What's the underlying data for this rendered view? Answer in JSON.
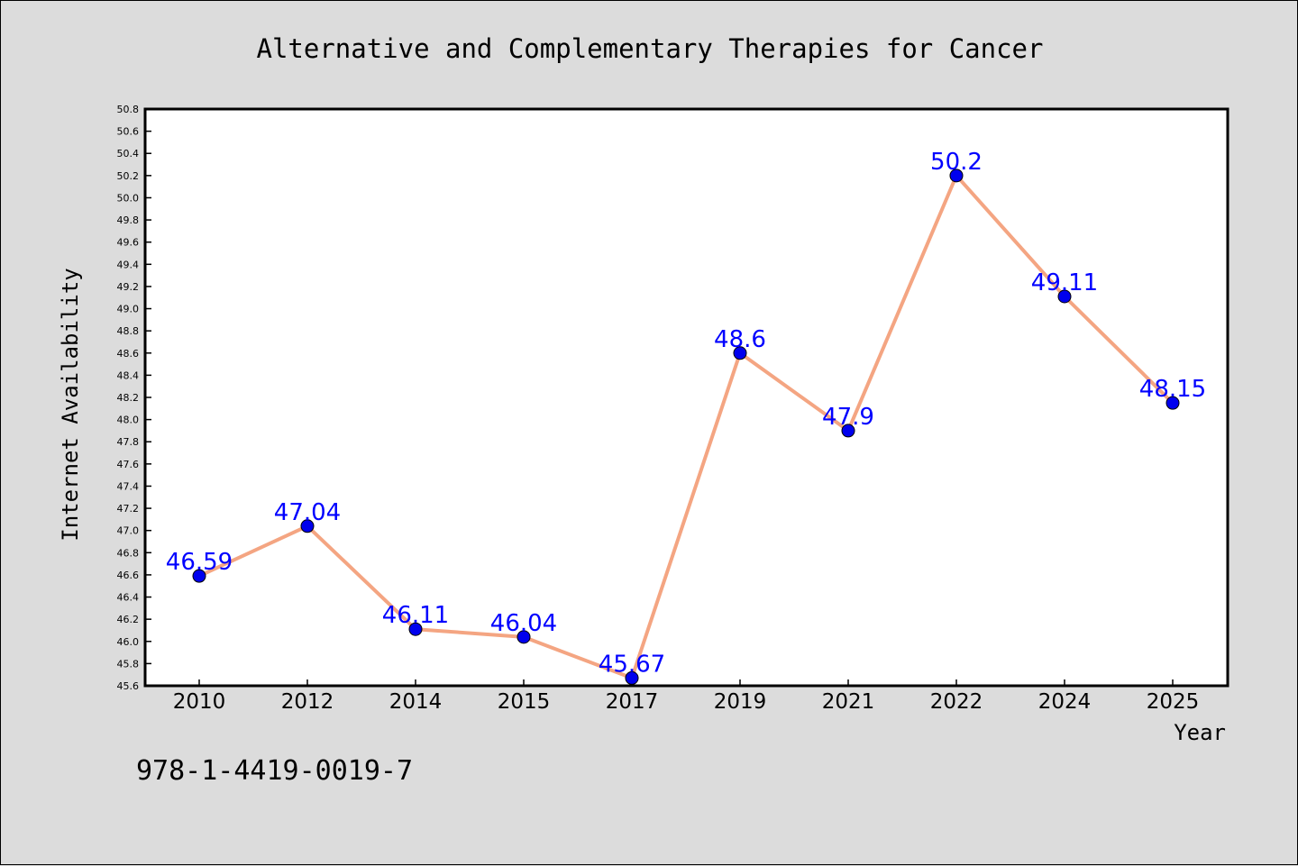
{
  "chart_data": {
    "type": "line",
    "title": "Alternative and Complementary Therapies for Cancer",
    "xlabel": "Year",
    "ylabel": "Internet Availability",
    "categories": [
      "2010",
      "2012",
      "2014",
      "2015",
      "2017",
      "2019",
      "2021",
      "2022",
      "2024",
      "2025"
    ],
    "values": [
      46.59,
      47.04,
      46.11,
      46.04,
      45.67,
      48.6,
      47.9,
      50.2,
      49.11,
      48.15
    ],
    "data_labels": [
      "46.59",
      "47.04",
      "46.11",
      "46.04",
      "45.67",
      "48.6",
      "47.9",
      "50.2",
      "49.11",
      "48.15"
    ],
    "ylim": [
      45.6,
      50.8
    ],
    "yticks": [
      "45.6",
      "45.8",
      "46.0",
      "46.2",
      "46.4",
      "46.6",
      "46.8",
      "47.0",
      "47.2",
      "47.4",
      "47.6",
      "47.8",
      "48.0",
      "48.2",
      "48.4",
      "48.6",
      "48.8",
      "49.0",
      "49.2",
      "49.4",
      "49.6",
      "49.8",
      "50.0",
      "50.2",
      "50.4",
      "50.6",
      "50.8"
    ],
    "grid": false,
    "line_color": "#f4a582",
    "marker_color": "#0000ee",
    "label_color": "#0000ff",
    "plot_background": "#ffffff",
    "figure_background": "#dcdcdc"
  },
  "annotation": "978-1-4419-0019-7"
}
